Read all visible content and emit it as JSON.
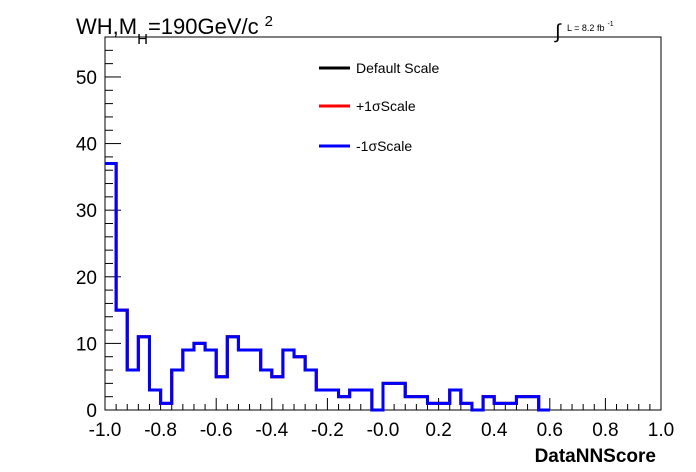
{
  "chart_data": {
    "type": "line",
    "title_main": "WH,M",
    "title_sub": "H",
    "title_rest": "=190GeV/c",
    "title_sup": "2",
    "lumi_integral": "∫",
    "lumi_text": "L = 8.2 fb",
    "lumi_sup": "-1",
    "xlabel": "DataNNScore",
    "xlim": [
      -1.0,
      1.0
    ],
    "ylim": [
      0,
      56
    ],
    "x_ticks": [
      "-1.0",
      "-0.8",
      "-0.6",
      "-0.4",
      "-0.2",
      "-0.0",
      "0.2",
      "0.4",
      "0.6",
      "0.8",
      "1.0"
    ],
    "y_ticks": [
      "0",
      "10",
      "20",
      "30",
      "40",
      "50"
    ],
    "bin_edges_start": -1.0,
    "bin_width": 0.04,
    "series": [
      {
        "name": "Default Scale",
        "color": "#000000",
        "values": [
          37,
          15,
          6,
          11,
          3,
          1,
          6,
          9,
          10,
          9,
          5,
          11,
          9,
          9,
          6,
          5,
          9,
          8,
          6,
          3,
          3,
          2,
          3,
          3,
          0,
          4,
          4,
          2,
          2,
          1,
          1,
          3,
          1,
          0,
          2,
          1,
          1,
          2,
          2,
          0
        ]
      },
      {
        "name": "+1σScale",
        "color": "#ff0000",
        "values": [
          37,
          15,
          6,
          11,
          3,
          1,
          6,
          9,
          10,
          9,
          5,
          11,
          9,
          9,
          6,
          5,
          9,
          8,
          6,
          3,
          3,
          2,
          3,
          3,
          0,
          4,
          4,
          2,
          2,
          1,
          1,
          3,
          1,
          0,
          2,
          1,
          1,
          2,
          2,
          0
        ]
      },
      {
        "name": "-1σScale",
        "color": "#0000ff",
        "values": [
          37,
          15,
          6,
          11,
          3,
          1,
          6,
          9,
          10,
          9,
          5,
          11,
          9,
          9,
          6,
          5,
          9,
          8,
          6,
          3,
          3,
          2,
          3,
          3,
          0,
          4,
          4,
          2,
          2,
          1,
          1,
          3,
          1,
          0,
          2,
          1,
          1,
          2,
          2,
          0
        ]
      }
    ],
    "legend_position": "top-center"
  }
}
